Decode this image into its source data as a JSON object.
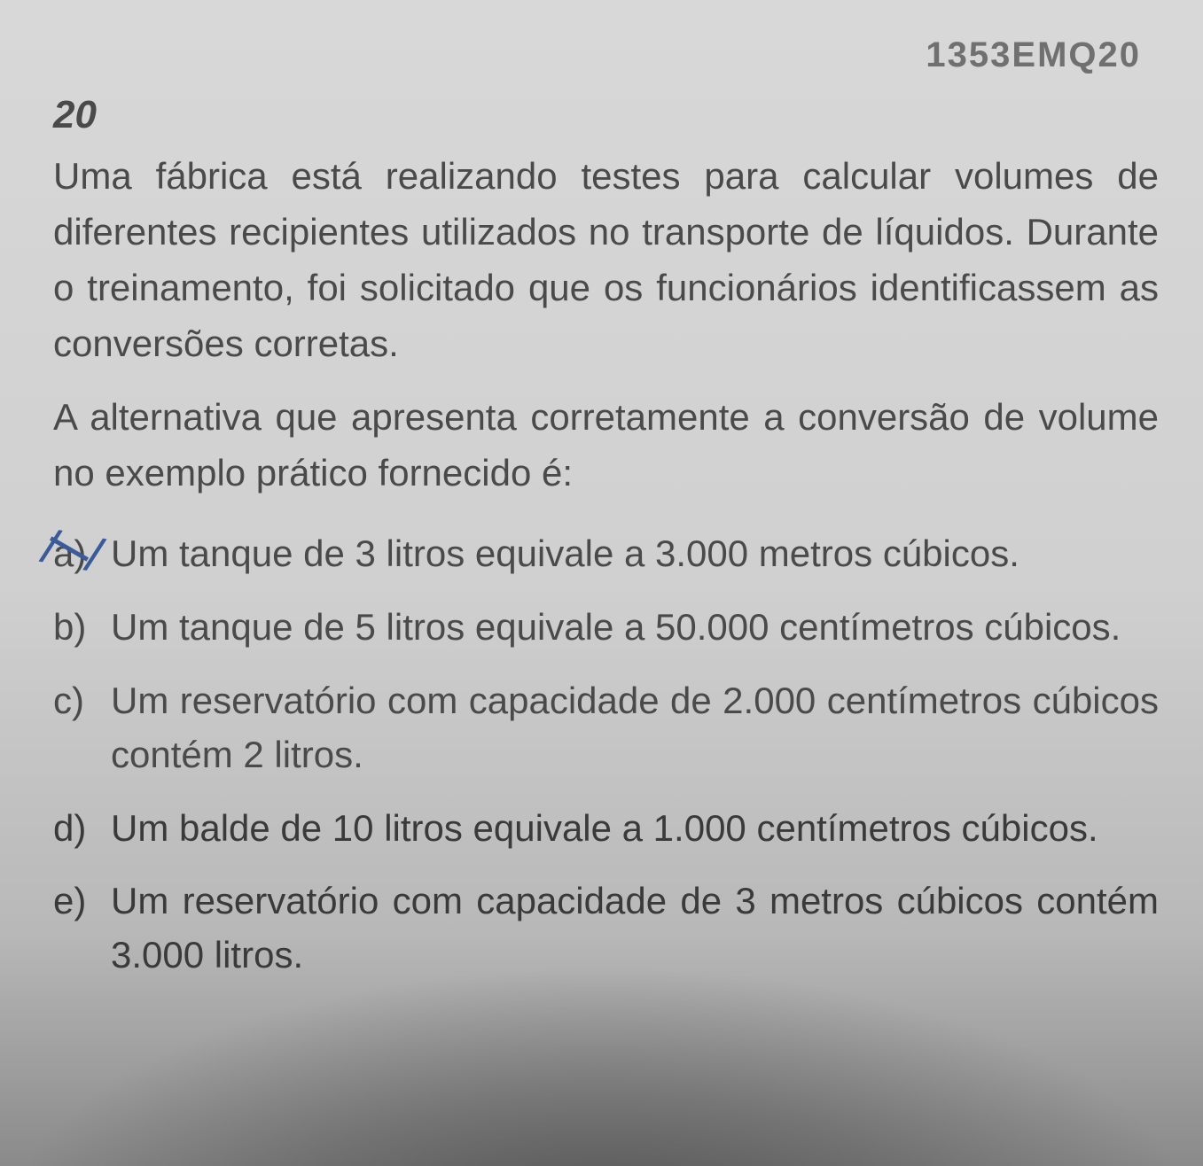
{
  "header": {
    "code": "1353EMQ20",
    "number": "20"
  },
  "question": {
    "text": "Uma fábrica está realizando testes para calcular volumes de diferentes recipientes utilizados no transporte de líquidos. Durante o treinamento, foi solicitado que os funcionários identificassem as conversões corretas.",
    "prompt": "A alternativa que apresenta corretamente a conversão de volume no exemplo prático fornecido é:"
  },
  "options": [
    {
      "letter": "a)",
      "text": "Um tanque de 3 litros equivale a 3.000 metros cúbicos.",
      "marked": true
    },
    {
      "letter": "b)",
      "text": "Um tanque de 5 litros equivale a 50.000 centímetros cúbicos.",
      "marked": false
    },
    {
      "letter": "c)",
      "text": "Um reservatório com capacidade de 2.000 centímetros cúbicos contém 2 litros.",
      "marked": false
    },
    {
      "letter": "d)",
      "text": "Um balde de 10 litros equivale a 1.000 centímetros cúbicos.",
      "marked": false
    },
    {
      "letter": "e)",
      "text": "Um reservatório com capacidade de 3 metros cúbicos contém 3.000 litros.",
      "marked": false
    }
  ],
  "styling": {
    "background_gradient_top": "#d8d8d8",
    "background_gradient_bottom": "#8a8a8a",
    "text_color": "#4a4a4a",
    "code_color": "#707070",
    "mark_color": "#3a5a9a",
    "body_fontsize": 42,
    "number_fontsize": 44,
    "code_fontsize": 40
  }
}
